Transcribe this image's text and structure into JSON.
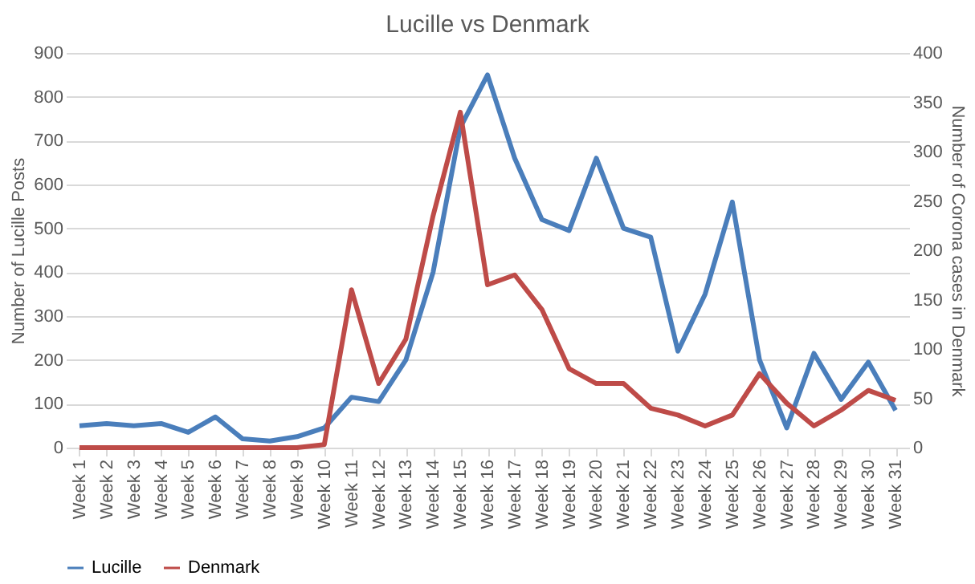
{
  "chart_data": {
    "type": "line",
    "title": "Lucille vs Denmark",
    "categories": [
      "Week 1",
      "Week 2",
      "Week 3",
      "Week 4",
      "Week 5",
      "Week 6",
      "Week 7",
      "Week 8",
      "Week 9",
      "Week 10",
      "Week 11",
      "Week 12",
      "Week 13",
      "Week 14",
      "Week 15",
      "Week 16",
      "Week 17",
      "Week 18",
      "Week 19",
      "Week 20",
      "Week 21",
      "Week 22",
      "Week 23",
      "Week 24",
      "Week 25",
      "Week 26",
      "Week 27",
      "Week 28",
      "Week 29",
      "Week 30",
      "Week 31"
    ],
    "ylabel": "Number of Lucille Posts",
    "y2label": "Number of Corona cases in Denmark",
    "series": [
      {
        "name": "Lucille",
        "color": "#4a7ebb",
        "values": [
          50,
          55,
          50,
          55,
          35,
          70,
          20,
          15,
          25,
          45,
          115,
          105,
          200,
          400,
          730,
          850,
          660,
          520,
          495,
          660,
          500,
          480,
          220,
          350,
          560,
          200,
          45,
          215,
          110,
          195,
          85
        ]
      },
      {
        "name": "Denmark",
        "color": "#be4b48",
        "axis": "y2",
        "values": [
          0,
          0,
          0,
          0,
          0,
          0,
          0,
          0,
          0,
          3,
          160,
          65,
          110,
          235,
          340,
          165,
          175,
          140,
          80,
          65,
          65,
          40,
          33,
          22,
          33,
          75,
          45,
          22,
          38,
          58,
          48
        ]
      }
    ],
    "ylim": [
      0,
      900
    ],
    "yticks": [
      0,
      100,
      200,
      300,
      400,
      500,
      600,
      700,
      800,
      900
    ],
    "y2lim": [
      0,
      400
    ],
    "y2ticks": [
      0,
      50,
      100,
      150,
      200,
      250,
      300,
      350,
      400
    ],
    "grid": "y",
    "legend": "bottom",
    "marker": "none",
    "line_style": "solid"
  }
}
